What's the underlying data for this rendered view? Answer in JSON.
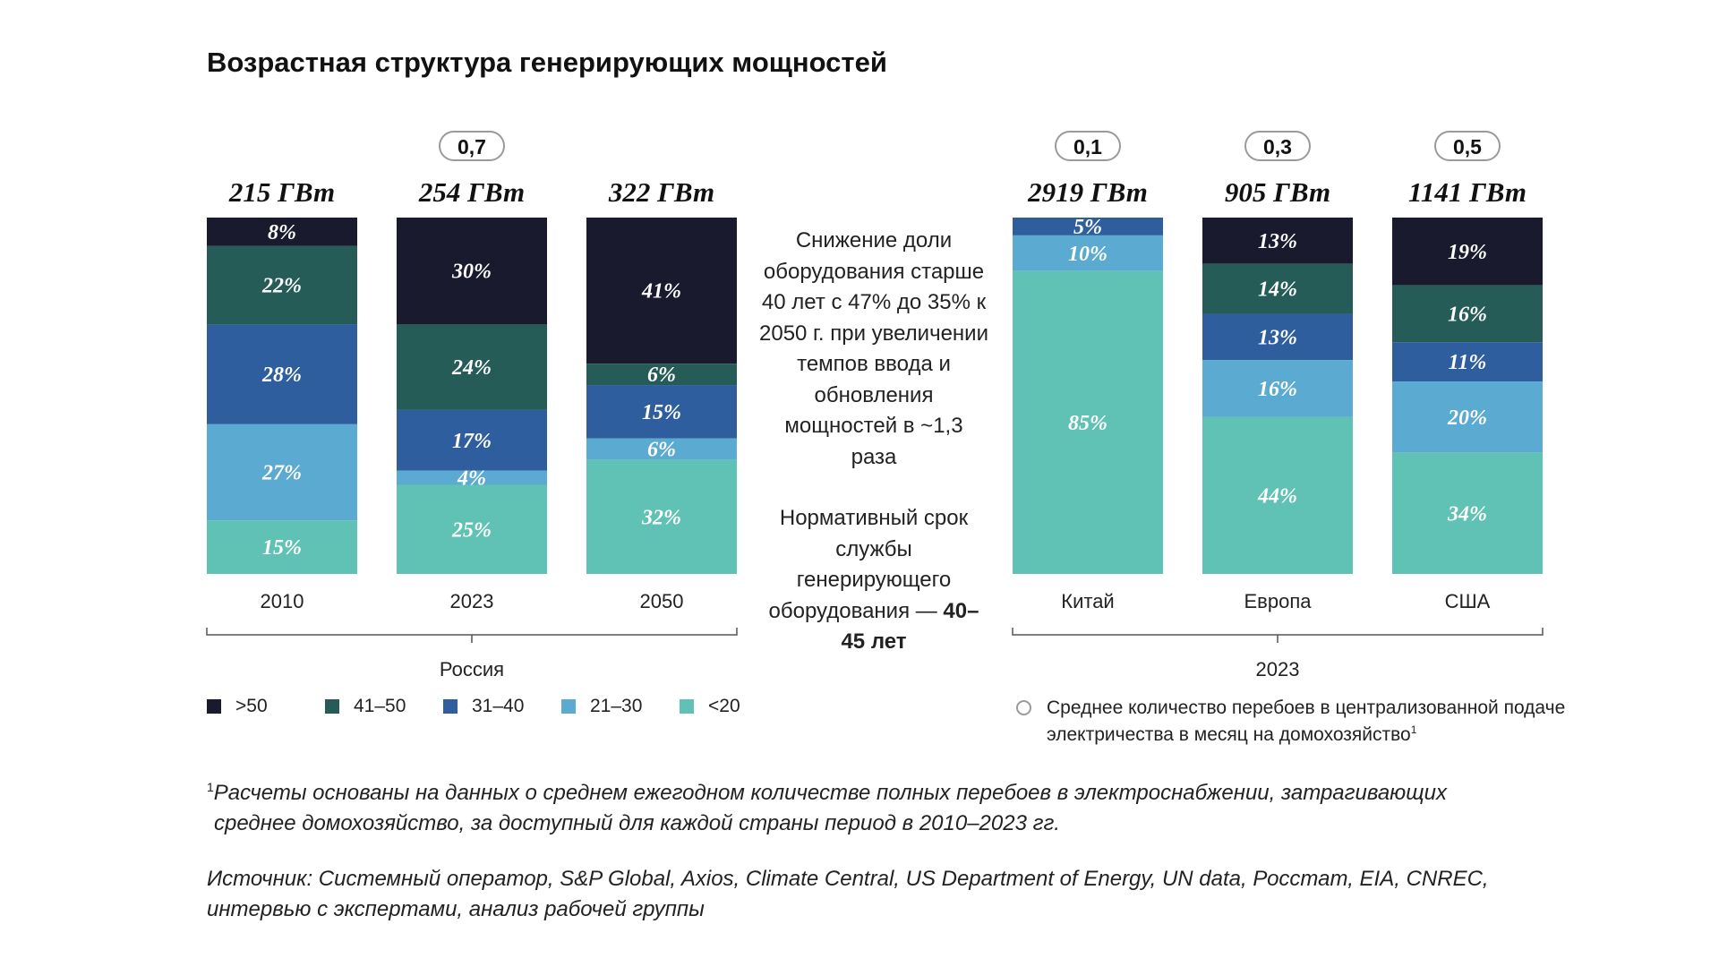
{
  "title": "Возрастная структура генерирующих мощностей",
  "middle_note": {
    "text": "Снижение доли оборудования старше 40 лет с 47% до 35% к 2050 г. при увеличении темпов ввода и обновления мощностей в ~1,3 раза",
    "norm_prefix": "Нормативный срок службы генерирующего оборудования —",
    "norm_bold": "40–45 лет"
  },
  "colors": {
    ">50": "#1a1a2e",
    "41–50": "#265c58",
    "31–40": "#2e5e9e",
    "21–30": "#5baad1",
    "<20": "#60c2b4"
  },
  "legend": {
    "items": [
      {
        "label": ">50",
        "key": ">50"
      },
      {
        "label": "41–50",
        "key": "41–50"
      },
      {
        "label": "31–40",
        "key": "31–40"
      },
      {
        "label": "21–30",
        "key": "21–30"
      },
      {
        "label": "<20",
        "key": "<20"
      }
    ],
    "circle_text": "Среднее количество перебоев в централизованной подаче электричества в месяц на домохозяйство",
    "circle_sup": "1"
  },
  "chart_data": {
    "type": "bar",
    "stacked": true,
    "normalized_percent": true,
    "segments_order_top_to_bottom": [
      ">50",
      "41–50",
      "31–40",
      "21–30",
      "<20"
    ],
    "groups": [
      {
        "label": "Россия",
        "bars": [
          {
            "category": "2010",
            "total": "215 ГВт",
            "pill": null,
            "values": {
              ">50": 8,
              "41–50": 22,
              "31–40": 28,
              "21–30": 27,
              "<20": 15
            }
          },
          {
            "category": "2023",
            "total": "254 ГВт",
            "pill": "0,7",
            "values": {
              ">50": 30,
              "41–50": 24,
              "31–40": 17,
              "21–30": 4,
              "<20": 25
            }
          },
          {
            "category": "2050",
            "total": "322 ГВт",
            "pill": null,
            "values": {
              ">50": 41,
              "41–50": 6,
              "31–40": 15,
              "21–30": 6,
              "<20": 32
            }
          }
        ]
      },
      {
        "label": "2023",
        "bars": [
          {
            "category": "Китай",
            "total": "2919 ГВт",
            "pill": "0,1",
            "values": {
              ">50": 0,
              "41–50": 0,
              "31–40": 5,
              "21–30": 10,
              "<20": 85
            }
          },
          {
            "category": "Европа",
            "total": "905 ГВт",
            "pill": "0,3",
            "values": {
              ">50": 13,
              "41–50": 14,
              "31–40": 13,
              "21–30": 16,
              "<20": 44
            }
          },
          {
            "category": "США",
            "total": "1141 ГВт",
            "pill": "0,5",
            "values": {
              ">50": 19,
              "41–50": 16,
              "31–40": 11,
              "21–30": 20,
              "<20": 34
            }
          }
        ]
      }
    ]
  },
  "footnote": {
    "mark": "1",
    "line1": "Расчеты основаны на данных о среднем ежегодном количестве полных перебоев в электроснабжении, затрагивающих",
    "line2": "среднее домохозяйство, за доступный для каждой страны период в 2010–2023 гг."
  },
  "source": {
    "line1": "Источник: Системный оператор, S&P Global, Axios, Climate Central, US Department of Energy, UN data, Росстат, EIA, CNREC,",
    "line2": "интервью с экспертами, анализ рабочей группы"
  }
}
